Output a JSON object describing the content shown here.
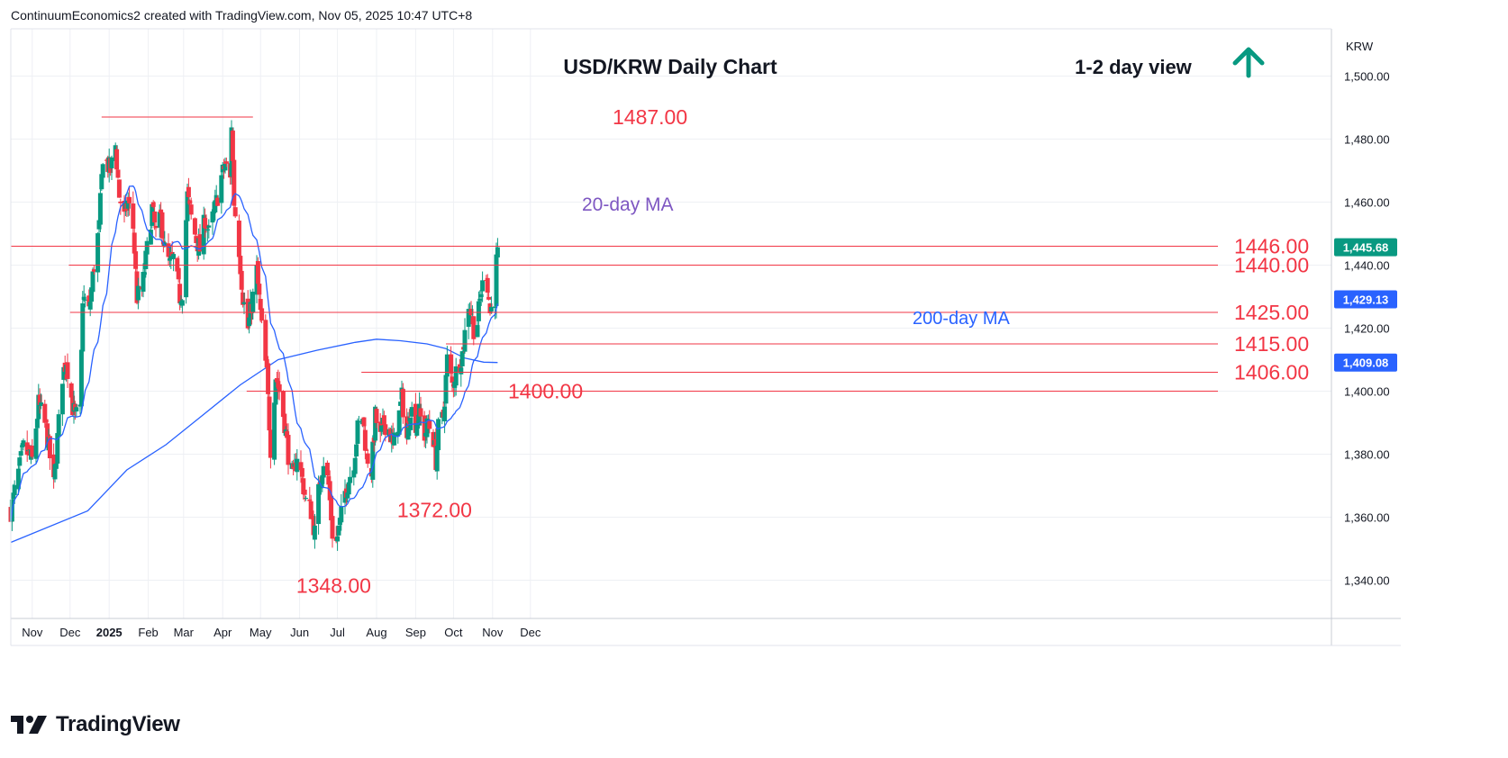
{
  "header": {
    "text": "ContinuumEconomics2 created with TradingView.com, Nov 05, 2025 10:47 UTC+8"
  },
  "brand": {
    "name": "TradingView"
  },
  "colors": {
    "up": "#089981",
    "down": "#f23645",
    "level": "#f23645",
    "ma20": "#7e57c2",
    "ma200": "#2962ff",
    "arrow": "#089981",
    "annot": "#f23645",
    "price_tag": "#089981",
    "ma_tag": "#2962ff"
  },
  "icons": {
    "view_arrow": "up-arrow-icon",
    "logo": "tradingview-logo-icon"
  },
  "chart_data": {
    "type": "candlestick",
    "title": "USD/KRW Daily Chart",
    "subtitle": "1-2 day view",
    "currency_label": "KRW",
    "y_ticks": [
      "1,340.00",
      "1,360.00",
      "1,380.00",
      "1,400.00",
      "1,420.00",
      "1,440.00",
      "1,460.00",
      "1,480.00",
      "1,500.00"
    ],
    "x_ticks": [
      "Nov",
      "Dec",
      "2025",
      "Feb",
      "Mar",
      "Apr",
      "May",
      "Jun",
      "Jul",
      "Aug",
      "Sep",
      "Oct",
      "Nov",
      "Dec"
    ],
    "ylim": [
      1325,
      1515
    ],
    "levels": [
      {
        "value": 1487,
        "label": "1487.00",
        "from": "2024-12-26",
        "to": "2025-04-25"
      },
      {
        "value": 1446,
        "label": "1446.00",
        "from": "2024-10-15",
        "to": "2025-11-05"
      },
      {
        "value": 1440,
        "label": "1440.00",
        "from": "2024-11-30",
        "to": "2025-11-05"
      },
      {
        "value": 1425,
        "label": "1425.00",
        "from": "2024-12-01",
        "to": "2025-11-05"
      },
      {
        "value": 1415,
        "label": "1415.00",
        "from": "2025-09-25",
        "to": "2025-11-05"
      },
      {
        "value": 1406,
        "label": "1406.00",
        "from": "2025-07-20",
        "to": "2025-11-05"
      },
      {
        "value": 1400,
        "label": "1400.00",
        "from": "2025-04-20",
        "to": "2025-11-05"
      }
    ],
    "annotations": [
      {
        "text": "1348.00",
        "date": "2025-06-28",
        "value": 1348
      },
      {
        "text": "1372.00",
        "date": "2025-09-16",
        "value": 1372
      }
    ],
    "ma_labels": {
      "ma20": "20-day MA",
      "ma200": "200-day MA"
    },
    "price_tags": {
      "last": "1,445.68",
      "ma20": "1,429.13",
      "ma200": "1,409.08"
    },
    "path": [
      [
        "2024-10-15",
        1362
      ],
      [
        "2024-10-25",
        1382
      ],
      [
        "2024-11-01",
        1378
      ],
      [
        "2024-11-06",
        1396
      ],
      [
        "2024-11-12",
        1388
      ],
      [
        "2024-11-18",
        1370
      ],
      [
        "2024-11-25",
        1405
      ],
      [
        "2024-11-28",
        1410
      ],
      [
        "2024-12-03",
        1395
      ],
      [
        "2024-12-05",
        1392
      ],
      [
        "2024-12-09",
        1393
      ],
      [
        "2024-12-11",
        1430
      ],
      [
        "2024-12-16",
        1425
      ],
      [
        "2024-12-20",
        1440
      ],
      [
        "2024-12-24",
        1452
      ],
      [
        "2024-12-27",
        1475
      ],
      [
        "2025-01-02",
        1470
      ],
      [
        "2025-01-06",
        1478
      ],
      [
        "2025-01-09",
        1462
      ],
      [
        "2025-01-13",
        1455
      ],
      [
        "2025-01-16",
        1460
      ],
      [
        "2025-01-20",
        1452
      ],
      [
        "2025-01-23",
        1430
      ],
      [
        "2025-01-27",
        1432
      ],
      [
        "2025-01-31",
        1445
      ],
      [
        "2025-02-04",
        1458
      ],
      [
        "2025-02-07",
        1450
      ],
      [
        "2025-02-11",
        1455
      ],
      [
        "2025-02-14",
        1445
      ],
      [
        "2025-02-18",
        1440
      ],
      [
        "2025-02-21",
        1442
      ],
      [
        "2025-02-26",
        1430
      ],
      [
        "2025-02-28",
        1432
      ],
      [
        "2025-03-04",
        1462
      ],
      [
        "2025-03-07",
        1455
      ],
      [
        "2025-03-11",
        1448
      ],
      [
        "2025-03-14",
        1445
      ],
      [
        "2025-03-18",
        1455
      ],
      [
        "2025-03-21",
        1450
      ],
      [
        "2025-03-26",
        1458
      ],
      [
        "2025-03-31",
        1468
      ],
      [
        "2025-04-03",
        1472
      ],
      [
        "2025-04-07",
        1467
      ],
      [
        "2025-04-08",
        1485
      ],
      [
        "2025-04-10",
        1460
      ],
      [
        "2025-04-14",
        1445
      ],
      [
        "2025-04-17",
        1430
      ],
      [
        "2025-04-21",
        1420
      ],
      [
        "2025-04-25",
        1430
      ],
      [
        "2025-04-28",
        1438
      ],
      [
        "2025-05-02",
        1420
      ],
      [
        "2025-05-06",
        1405
      ],
      [
        "2025-05-09",
        1382
      ],
      [
        "2025-05-13",
        1405
      ],
      [
        "2025-05-16",
        1400
      ],
      [
        "2025-05-20",
        1390
      ],
      [
        "2025-05-23",
        1380
      ],
      [
        "2025-05-27",
        1372
      ],
      [
        "2025-05-30",
        1380
      ],
      [
        "2025-06-03",
        1372
      ],
      [
        "2025-06-06",
        1365
      ],
      [
        "2025-06-10",
        1362
      ],
      [
        "2025-06-13",
        1355
      ],
      [
        "2025-06-17",
        1372
      ],
      [
        "2025-06-20",
        1378
      ],
      [
        "2025-06-24",
        1370
      ],
      [
        "2025-06-27",
        1355
      ],
      [
        "2025-06-30",
        1352
      ],
      [
        "2025-07-03",
        1358
      ],
      [
        "2025-07-07",
        1368
      ],
      [
        "2025-07-10",
        1372
      ],
      [
        "2025-07-14",
        1378
      ],
      [
        "2025-07-17",
        1388
      ],
      [
        "2025-07-21",
        1392
      ],
      [
        "2025-07-24",
        1380
      ],
      [
        "2025-07-28",
        1375
      ],
      [
        "2025-07-31",
        1392
      ],
      [
        "2025-08-04",
        1385
      ],
      [
        "2025-08-07",
        1390
      ],
      [
        "2025-08-11",
        1388
      ],
      [
        "2025-08-14",
        1382
      ],
      [
        "2025-08-18",
        1390
      ],
      [
        "2025-08-21",
        1398
      ],
      [
        "2025-08-25",
        1385
      ],
      [
        "2025-08-28",
        1395
      ],
      [
        "2025-09-01",
        1390
      ],
      [
        "2025-09-04",
        1393
      ],
      [
        "2025-09-08",
        1386
      ],
      [
        "2025-09-11",
        1390
      ],
      [
        "2025-09-15",
        1385
      ],
      [
        "2025-09-17",
        1378
      ],
      [
        "2025-09-19",
        1388
      ],
      [
        "2025-09-23",
        1392
      ],
      [
        "2025-09-26",
        1410
      ],
      [
        "2025-09-30",
        1402
      ],
      [
        "2025-10-02",
        1405
      ],
      [
        "2025-10-08",
        1412
      ],
      [
        "2025-10-13",
        1428
      ],
      [
        "2025-10-15",
        1425
      ],
      [
        "2025-10-17",
        1420
      ],
      [
        "2025-10-20",
        1422
      ],
      [
        "2025-10-23",
        1432
      ],
      [
        "2025-10-27",
        1438
      ],
      [
        "2025-10-30",
        1425
      ],
      [
        "2025-11-03",
        1430
      ],
      [
        "2025-11-04",
        1441
      ],
      [
        "2025-11-05",
        1445.68
      ]
    ],
    "ma200_path": [
      [
        "2024-10-15",
        1352
      ],
      [
        "2024-12-15",
        1362
      ],
      [
        "2025-01-15",
        1375
      ],
      [
        "2025-02-15",
        1383
      ],
      [
        "2025-03-15",
        1392
      ],
      [
        "2025-04-15",
        1402
      ],
      [
        "2025-05-15",
        1410
      ],
      [
        "2025-06-15",
        1413
      ],
      [
        "2025-07-15",
        1415.5
      ],
      [
        "2025-08-01",
        1416.5
      ],
      [
        "2025-08-20",
        1416.0
      ],
      [
        "2025-09-10",
        1415.0
      ],
      [
        "2025-09-25",
        1413.5
      ],
      [
        "2025-10-10",
        1410.5
      ],
      [
        "2025-10-25",
        1409.2
      ],
      [
        "2025-11-05",
        1409.08
      ]
    ]
  }
}
